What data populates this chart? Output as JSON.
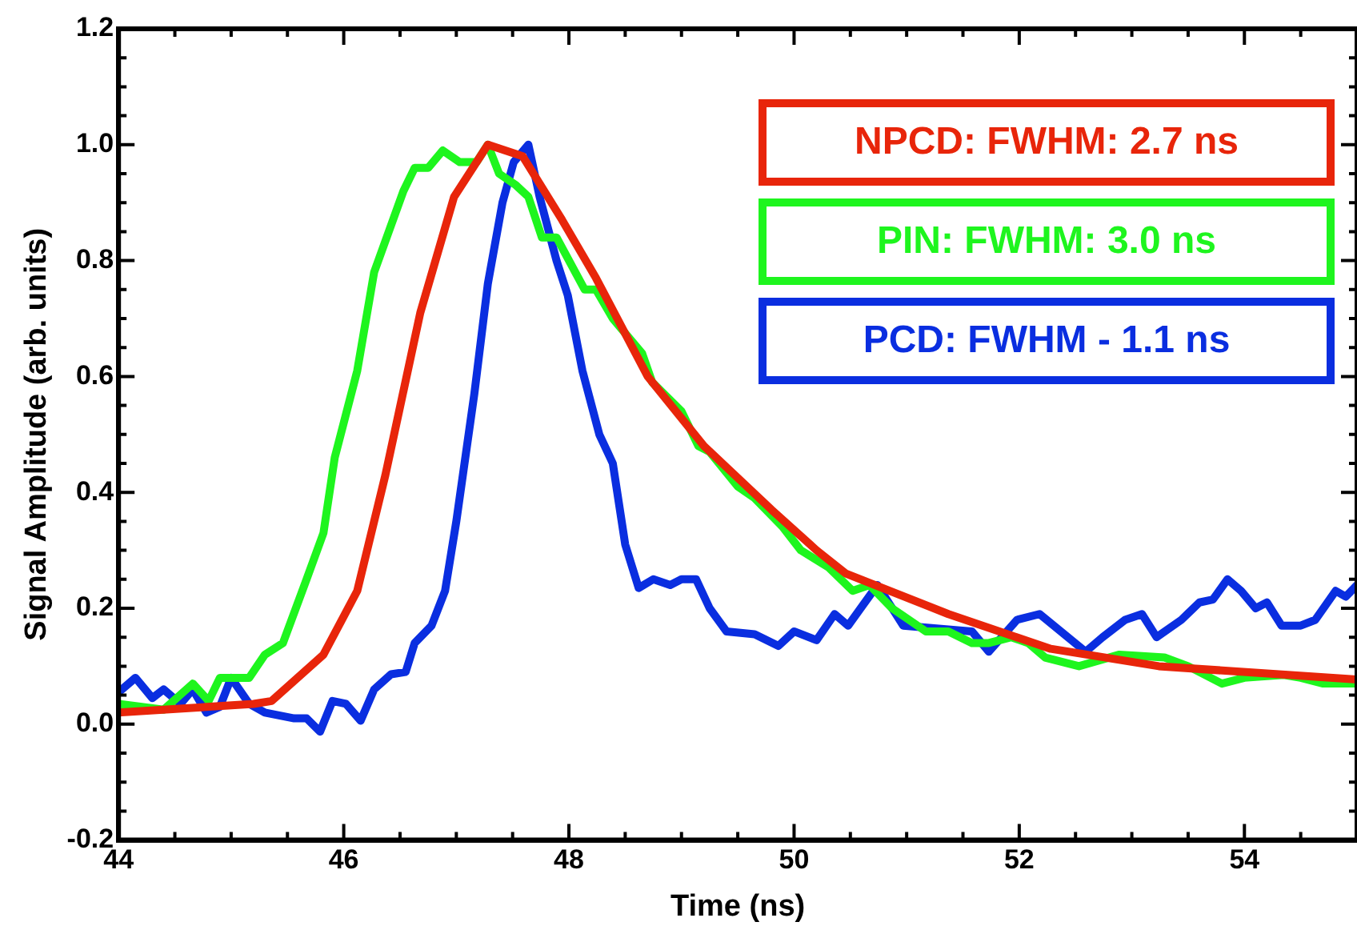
{
  "chart_data": {
    "type": "line",
    "xlabel": "Time (ns)",
    "ylabel": "Signal Amplitude (arb. units)",
    "xlim": [
      44,
      55
    ],
    "ylim": [
      -0.2,
      1.2
    ],
    "xticks": [
      44,
      {
        "value": 44.5,
        "label": null
      },
      {
        "value": 45,
        "label": null
      },
      {
        "value": 45.5,
        "label": null
      },
      46,
      {
        "value": 46.5,
        "label": null
      },
      {
        "value": 47,
        "label": null
      },
      {
        "value": 47.5,
        "label": null
      },
      48,
      {
        "value": 48.5,
        "label": null
      },
      {
        "value": 49,
        "label": null
      },
      {
        "value": 49.5,
        "label": null
      },
      50,
      {
        "value": 50.5,
        "label": null
      },
      {
        "value": 51,
        "label": null
      },
      {
        "value": 51.5,
        "label": null
      },
      52,
      {
        "value": 52.5,
        "label": null
      },
      {
        "value": 53,
        "label": null
      },
      {
        "value": 53.5,
        "label": null
      },
      54,
      {
        "value": 54.5,
        "label": null
      }
    ],
    "yticks": [
      {
        "value": -0.2,
        "label": "-0.2"
      },
      {
        "value": -0.15,
        "label": null
      },
      {
        "value": -0.1,
        "label": null
      },
      {
        "value": -0.05,
        "label": null
      },
      {
        "value": 0,
        "label": "0.0"
      },
      {
        "value": 0.05,
        "label": null
      },
      {
        "value": 0.1,
        "label": null
      },
      {
        "value": 0.15,
        "label": null
      },
      {
        "value": 0.2,
        "label": "0.2"
      },
      {
        "value": 0.25,
        "label": null
      },
      {
        "value": 0.3,
        "label": null
      },
      {
        "value": 0.35,
        "label": null
      },
      {
        "value": 0.4,
        "label": "0.4"
      },
      {
        "value": 0.45,
        "label": null
      },
      {
        "value": 0.5,
        "label": null
      },
      {
        "value": 0.55,
        "label": null
      },
      {
        "value": 0.6,
        "label": "0.6"
      },
      {
        "value": 0.65,
        "label": null
      },
      {
        "value": 0.7,
        "label": null
      },
      {
        "value": 0.75,
        "label": null
      },
      {
        "value": 0.8,
        "label": "0.8"
      },
      {
        "value": 0.85,
        "label": null
      },
      {
        "value": 0.9,
        "label": null
      },
      {
        "value": 0.95,
        "label": null
      },
      {
        "value": 1.0,
        "label": "1.0"
      },
      {
        "value": 1.05,
        "label": null
      },
      {
        "value": 1.1,
        "label": null
      },
      {
        "value": 1.15,
        "label": null
      },
      {
        "value": 1.2,
        "label": "1.2"
      }
    ],
    "legend": "top right",
    "grid": false,
    "marker": "none",
    "line_style": "solid",
    "series": [
      {
        "name": "NPCD: FWHM: 2.7 ns",
        "color": "#e8250a",
        "x": [
          44,
          45.2,
          45.36,
          45.82,
          46.12,
          46.37,
          46.68,
          46.98,
          47.28,
          47.59,
          47.94,
          48.24,
          48.7,
          49.2,
          49.8,
          50.2,
          50.46,
          51.37,
          52.28,
          53.24,
          55
        ],
        "values": [
          0.02,
          0.035,
          0.04,
          0.12,
          0.23,
          0.43,
          0.71,
          0.91,
          1.0,
          0.98,
          0.87,
          0.77,
          0.6,
          0.48,
          0.37,
          0.3,
          0.26,
          0.19,
          0.13,
          0.1,
          0.077
        ]
      },
      {
        "name": "PIN: FWHM: 3.0 ns",
        "color": "#1ef51e",
        "x": [
          44,
          44.4,
          44.66,
          44.8,
          44.9,
          45.16,
          45.3,
          45.46,
          45.67,
          45.82,
          45.92,
          46.12,
          46.27,
          46.53,
          46.63,
          46.75,
          46.88,
          47.03,
          47.18,
          47.28,
          47.38,
          47.53,
          47.64,
          47.76,
          47.89,
          48.14,
          48.24,
          48.39,
          48.65,
          48.74,
          49.0,
          49.15,
          49.25,
          49.5,
          49.65,
          49.9,
          50.06,
          50.31,
          50.52,
          50.67,
          50.87,
          51.17,
          51.37,
          51.58,
          51.73,
          51.93,
          52.08,
          52.23,
          52.53,
          52.89,
          53.29,
          53.5,
          53.8,
          54.0,
          54.35,
          54.5,
          54.7,
          55
        ],
        "values": [
          0.035,
          0.025,
          0.07,
          0.04,
          0.08,
          0.08,
          0.12,
          0.14,
          0.25,
          0.33,
          0.46,
          0.61,
          0.78,
          0.92,
          0.96,
          0.96,
          0.99,
          0.97,
          0.97,
          1.0,
          0.95,
          0.93,
          0.91,
          0.84,
          0.84,
          0.75,
          0.75,
          0.7,
          0.64,
          0.59,
          0.54,
          0.48,
          0.47,
          0.41,
          0.39,
          0.34,
          0.3,
          0.27,
          0.23,
          0.24,
          0.2,
          0.16,
          0.16,
          0.14,
          0.14,
          0.15,
          0.14,
          0.115,
          0.1,
          0.12,
          0.115,
          0.1,
          0.07,
          0.08,
          0.085,
          0.08,
          0.07,
          0.07
        ]
      },
      {
        "name": "PCD: FWHM - 1.1 ns",
        "color": "#0a2ee0",
        "x": [
          44,
          44.15,
          44.3,
          44.4,
          44.55,
          44.66,
          44.78,
          44.9,
          45.0,
          45.16,
          45.3,
          45.56,
          45.67,
          45.79,
          45.9,
          46.02,
          46.15,
          46.27,
          46.42,
          46.55,
          46.63,
          46.78,
          46.9,
          47.0,
          47.16,
          47.28,
          47.41,
          47.51,
          47.64,
          47.74,
          47.89,
          47.99,
          48.12,
          48.27,
          48.39,
          48.5,
          48.62,
          48.75,
          48.9,
          49.0,
          49.13,
          49.25,
          49.4,
          49.65,
          49.86,
          50.0,
          50.2,
          50.36,
          50.48,
          50.74,
          50.97,
          51.58,
          51.73,
          51.98,
          52.18,
          52.59,
          52.74,
          52.94,
          53.09,
          53.22,
          53.44,
          53.6,
          53.72,
          53.85,
          53.97,
          54.1,
          54.2,
          54.33,
          54.5,
          54.63,
          54.81,
          54.9,
          55
        ],
        "values": [
          0.055,
          0.08,
          0.045,
          0.06,
          0.035,
          0.06,
          0.02,
          0.03,
          0.08,
          0.035,
          0.02,
          0.01,
          0.01,
          -0.013,
          0.04,
          0.035,
          0.006,
          0.06,
          0.086,
          0.09,
          0.14,
          0.17,
          0.23,
          0.35,
          0.57,
          0.76,
          0.9,
          0.97,
          1.0,
          0.91,
          0.8,
          0.74,
          0.61,
          0.5,
          0.45,
          0.31,
          0.235,
          0.25,
          0.24,
          0.25,
          0.25,
          0.2,
          0.16,
          0.155,
          0.135,
          0.16,
          0.145,
          0.19,
          0.17,
          0.24,
          0.17,
          0.16,
          0.125,
          0.18,
          0.19,
          0.125,
          0.15,
          0.18,
          0.19,
          0.15,
          0.18,
          0.21,
          0.215,
          0.25,
          0.23,
          0.2,
          0.21,
          0.17,
          0.17,
          0.18,
          0.23,
          0.22,
          0.24
        ]
      }
    ]
  }
}
